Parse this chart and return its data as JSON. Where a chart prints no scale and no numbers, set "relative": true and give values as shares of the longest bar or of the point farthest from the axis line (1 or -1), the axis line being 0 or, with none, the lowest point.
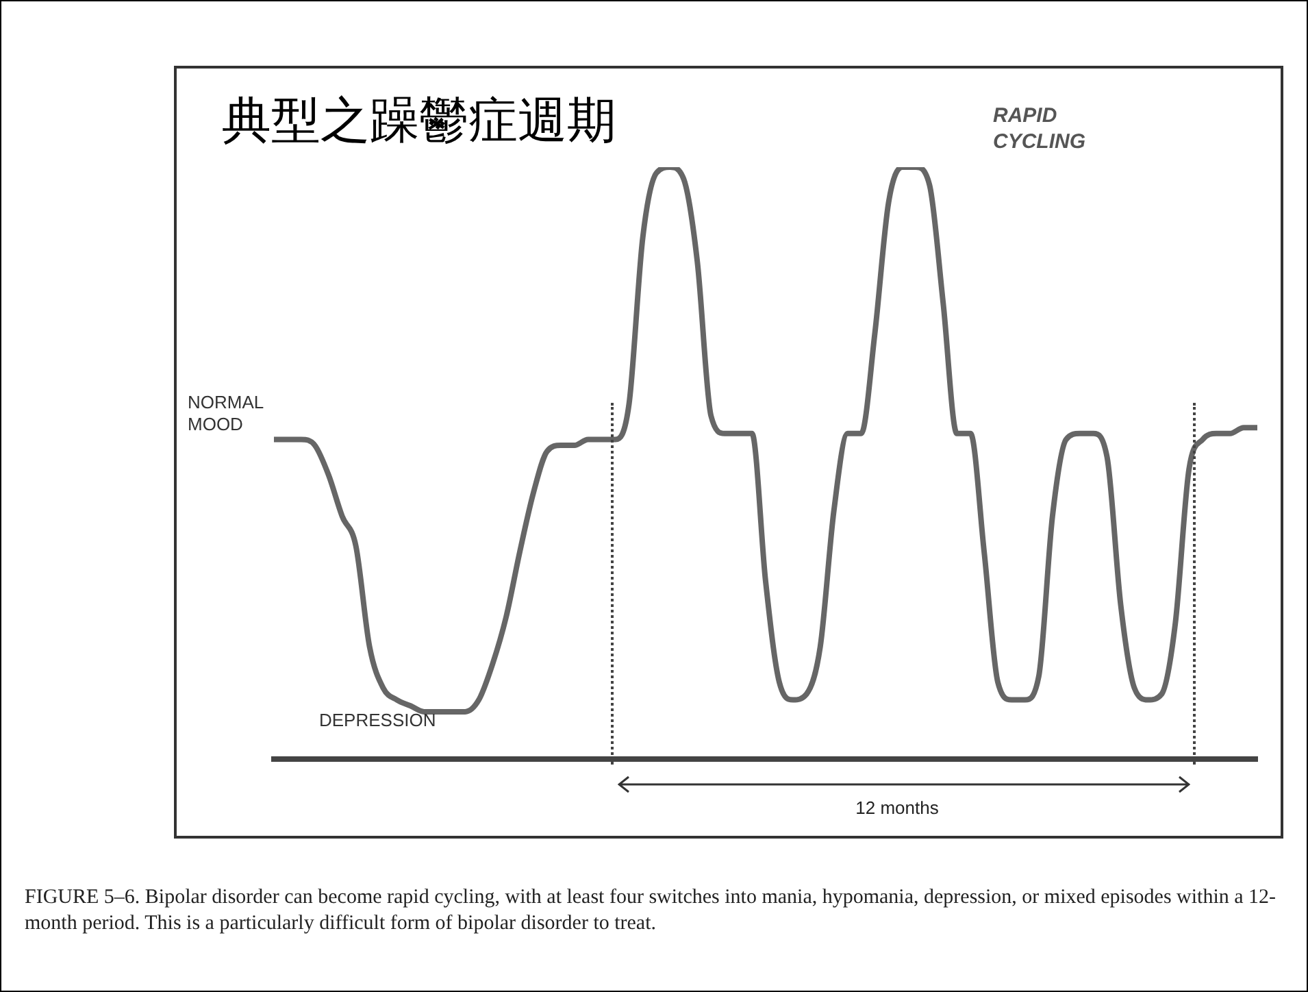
{
  "chart_data": {
    "type": "line",
    "relative": true,
    "title": "典型之躁鬱症週期",
    "marker": "none",
    "categories": [
      null,
      null,
      null,
      null,
      null,
      null,
      null,
      null,
      null,
      null,
      null,
      null,
      null,
      null,
      null,
      null,
      null,
      null,
      null,
      null,
      null,
      null,
      null,
      null,
      null,
      null,
      null,
      null,
      null,
      null,
      null,
      null,
      null,
      null,
      null,
      null,
      null,
      null,
      null,
      null,
      null,
      null,
      null,
      null,
      null,
      null,
      null,
      null,
      null,
      null,
      null,
      null,
      null,
      null,
      null,
      null,
      null,
      null,
      null,
      null,
      null,
      null,
      null,
      null,
      null,
      null,
      null,
      null,
      null,
      null,
      null,
      null,
      null
    ],
    "series": [
      {
        "color": "#666666",
        "values": [
          0.54,
          0.54,
          0.54,
          0.53,
          0.48,
          0.41,
          0.36,
          0.19,
          0.12,
          0.1,
          0.09,
          0.08,
          0.08,
          0.08,
          0.08,
          0.1,
          0.16,
          0.24,
          0.35,
          0.45,
          0.52,
          0.53,
          0.53,
          0.54,
          0.54,
          0.54,
          0.6,
          0.88,
          0.99,
          1,
          0.98,
          0.84,
          0.58,
          0.55,
          0.55,
          0.55,
          0.3,
          0.13,
          0.1,
          0.11,
          0.19,
          0.42,
          0.55,
          0.55,
          0.72,
          0.94,
          1,
          1,
          0.97,
          0.77,
          0.55,
          0.55,
          0.35,
          0.13,
          0.1,
          0.1,
          0.14,
          0.41,
          0.54,
          0.55,
          0.55,
          0.51,
          0.26,
          0.12,
          0.1,
          0.11,
          0.23,
          0.49,
          0.54,
          0.55,
          0.55,
          0.56,
          0.56
        ]
      }
    ],
    "annotations": [
      "RAPID\nCYCLING",
      "NORMAL\nMOOD",
      "DEPRESSION",
      "12 months",
      "FIGURE 5–6. Bipolar disorder can become rapid cycling, with at least four switches into mania, hypomania, depression, or mixed episodes within a 12-month period. This is a particularly difficult form of bipolar disorder to treat."
    ]
  }
}
